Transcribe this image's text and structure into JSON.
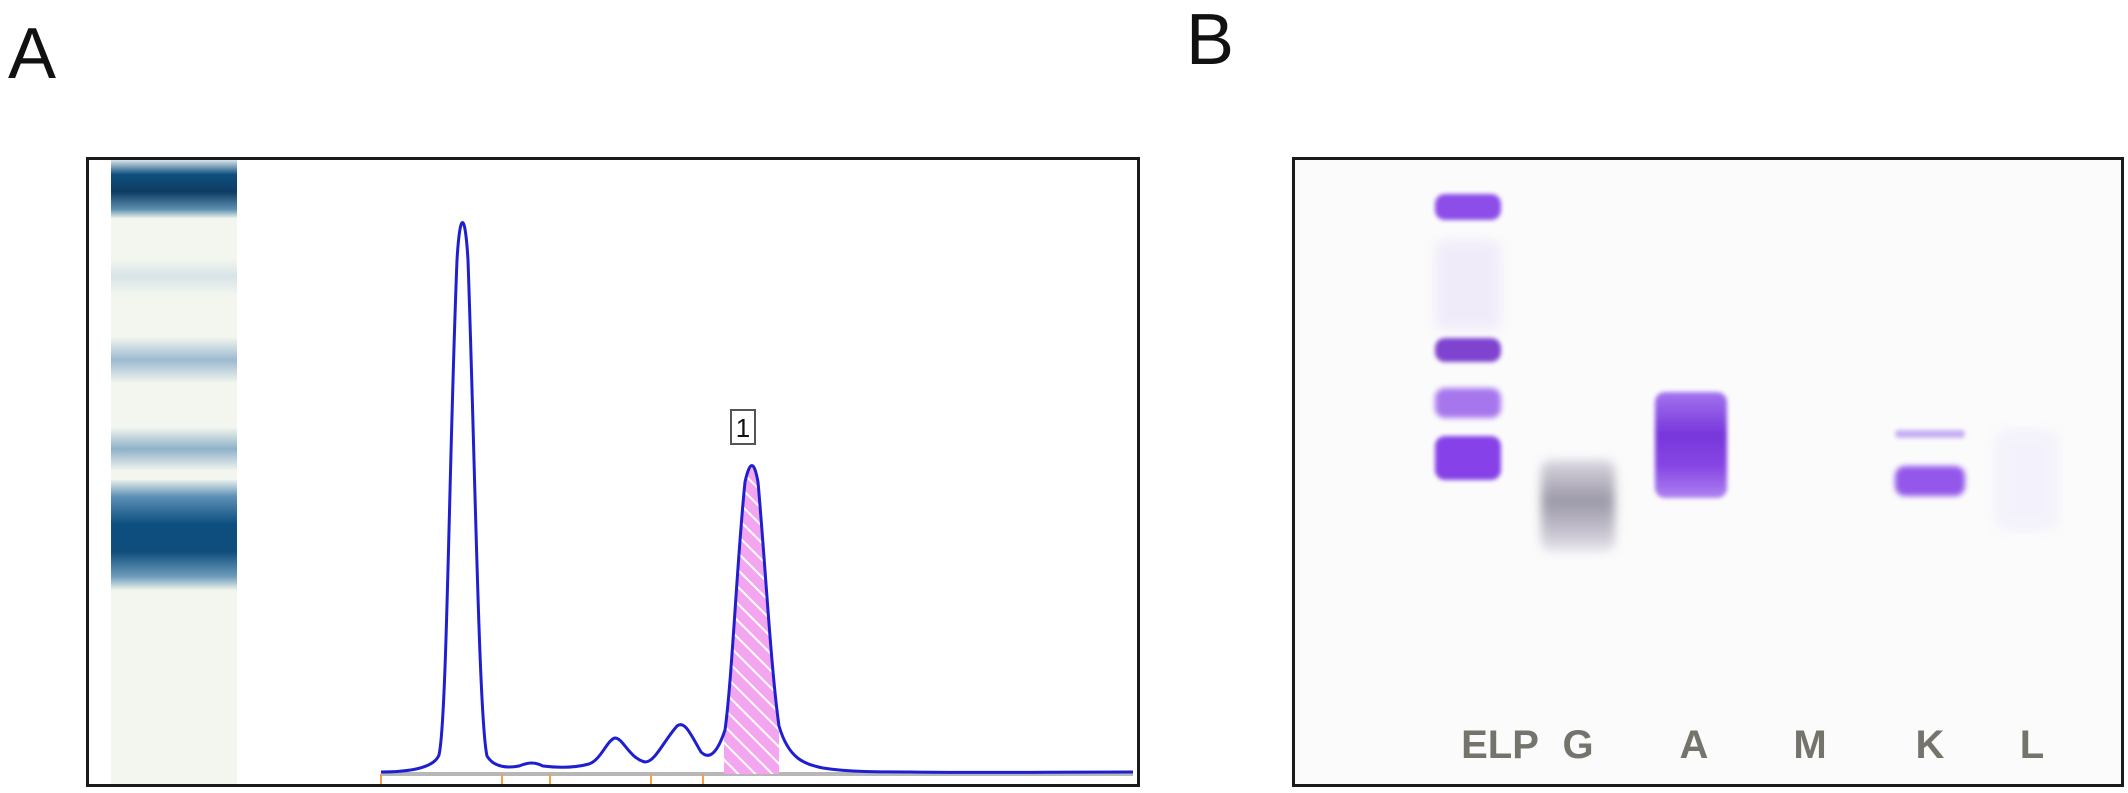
{
  "panels": {
    "a": {
      "letter": "A"
    },
    "b": {
      "letter": "B"
    }
  },
  "densitometry": {
    "peak_marker_label": "1",
    "curve_color": "#1f1fcf",
    "highlight_color": "#f07ee8",
    "baseline_color": "#b7b7b7",
    "tick_color": "#f3a04a"
  },
  "gel": {
    "lanes": [
      "ELP",
      "G",
      "A",
      "M",
      "K",
      "L"
    ],
    "stain_color": "#7a2fe6"
  },
  "colors": {
    "strip_band": "#0f4f7e",
    "gel_purple": "#7a2fe6"
  }
}
